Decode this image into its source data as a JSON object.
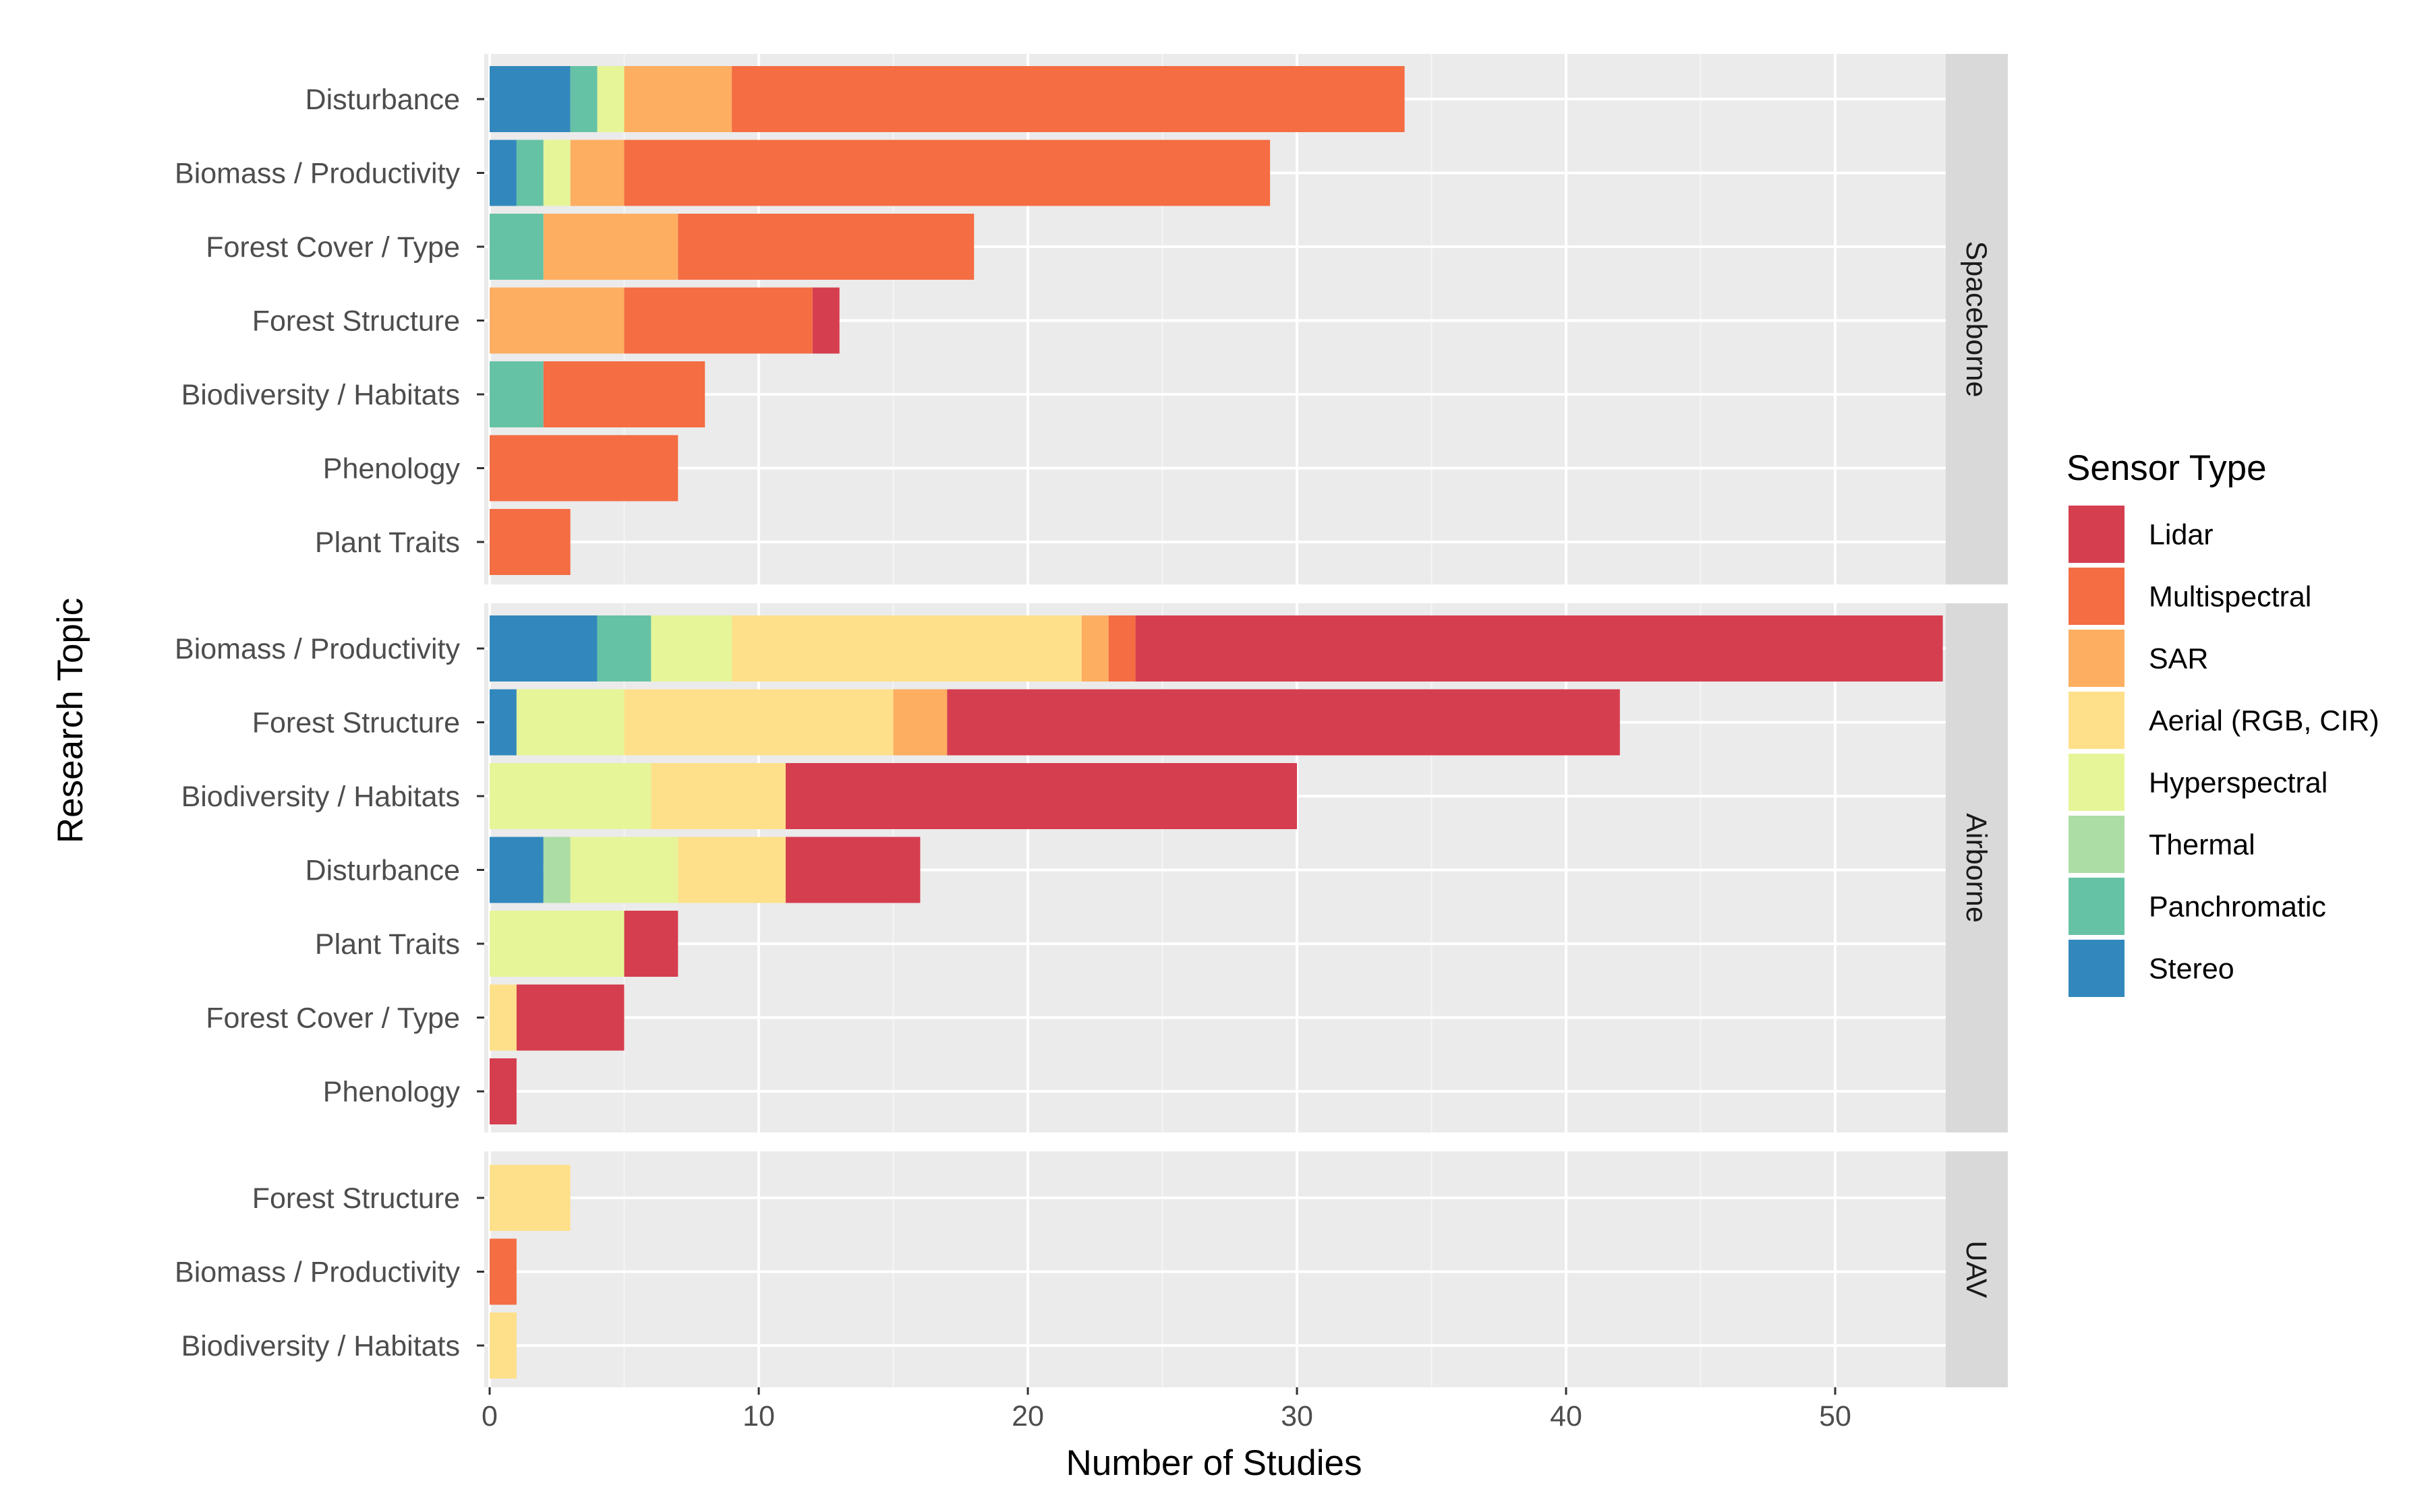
{
  "chart_data": {
    "type": "bar",
    "orientation": "horizontal",
    "stacked": true,
    "title": "",
    "xlabel": "Number of Studies",
    "ylabel": "Research Topic",
    "xlim": [
      0,
      55
    ],
    "xticks": [
      0,
      10,
      20,
      30,
      40,
      50
    ],
    "grid": true,
    "legend": {
      "title": "Sensor Type",
      "placement": "right",
      "entries": [
        {
          "key": "lidar",
          "label": "Lidar",
          "color": "#D53E4F"
        },
        {
          "key": "multispectral",
          "label": "Multispectral",
          "color": "#F46D43"
        },
        {
          "key": "sar",
          "label": "SAR",
          "color": "#FDAE61"
        },
        {
          "key": "aerial",
          "label": "Aerial (RGB, CIR)",
          "color": "#FEE08B"
        },
        {
          "key": "hyperspectral",
          "label": "Hyperspectral",
          "color": "#E6F598"
        },
        {
          "key": "thermal",
          "label": "Thermal",
          "color": "#ABDDA4"
        },
        {
          "key": "panchromatic",
          "label": "Panchromatic",
          "color": "#66C2A5"
        },
        {
          "key": "stereo",
          "label": "Stereo",
          "color": "#3288BD"
        }
      ]
    },
    "stack_order_left_to_right": [
      "stereo",
      "panchromatic",
      "thermal",
      "hyperspectral",
      "aerial",
      "sar",
      "multispectral",
      "lidar"
    ],
    "panels": [
      {
        "name": "Spaceborne",
        "bars": [
          {
            "topic": "Disturbance",
            "values": {
              "stereo": 3,
              "panchromatic": 1,
              "hyperspectral": 1,
              "sar": 4,
              "multispectral": 25
            }
          },
          {
            "topic": "Biomass / Productivity",
            "values": {
              "stereo": 1,
              "panchromatic": 1,
              "hyperspectral": 1,
              "sar": 2,
              "multispectral": 24
            }
          },
          {
            "topic": "Forest Cover / Type",
            "values": {
              "panchromatic": 2,
              "sar": 5,
              "multispectral": 11
            }
          },
          {
            "topic": "Forest Structure",
            "values": {
              "sar": 5,
              "multispectral": 7,
              "lidar": 1
            }
          },
          {
            "topic": "Biodiversity / Habitats",
            "values": {
              "panchromatic": 2,
              "multispectral": 6
            }
          },
          {
            "topic": "Phenology",
            "values": {
              "multispectral": 7
            }
          },
          {
            "topic": "Plant Traits",
            "values": {
              "multispectral": 3
            }
          }
        ]
      },
      {
        "name": "Airborne",
        "bars": [
          {
            "topic": "Biomass / Productivity",
            "values": {
              "stereo": 4,
              "panchromatic": 2,
              "hyperspectral": 3,
              "aerial": 13,
              "sar": 1,
              "multispectral": 1,
              "lidar": 30
            }
          },
          {
            "topic": "Forest Structure",
            "values": {
              "stereo": 1,
              "hyperspectral": 4,
              "aerial": 10,
              "sar": 2,
              "lidar": 25
            }
          },
          {
            "topic": "Biodiversity / Habitats",
            "values": {
              "hyperspectral": 6,
              "aerial": 5,
              "lidar": 19
            }
          },
          {
            "topic": "Disturbance",
            "values": {
              "stereo": 2,
              "thermal": 1,
              "hyperspectral": 4,
              "aerial": 4,
              "lidar": 5
            }
          },
          {
            "topic": "Plant Traits",
            "values": {
              "hyperspectral": 5,
              "lidar": 2
            }
          },
          {
            "topic": "Forest Cover / Type",
            "values": {
              "aerial": 1,
              "lidar": 4
            }
          },
          {
            "topic": "Phenology",
            "values": {
              "lidar": 1
            }
          }
        ]
      },
      {
        "name": "UAV",
        "bars": [
          {
            "topic": "Forest Structure",
            "values": {
              "aerial": 3
            }
          },
          {
            "topic": "Biomass / Productivity",
            "values": {
              "multispectral": 1
            }
          },
          {
            "topic": "Biodiversity / Habitats",
            "values": {
              "aerial": 1
            }
          }
        ]
      }
    ]
  }
}
